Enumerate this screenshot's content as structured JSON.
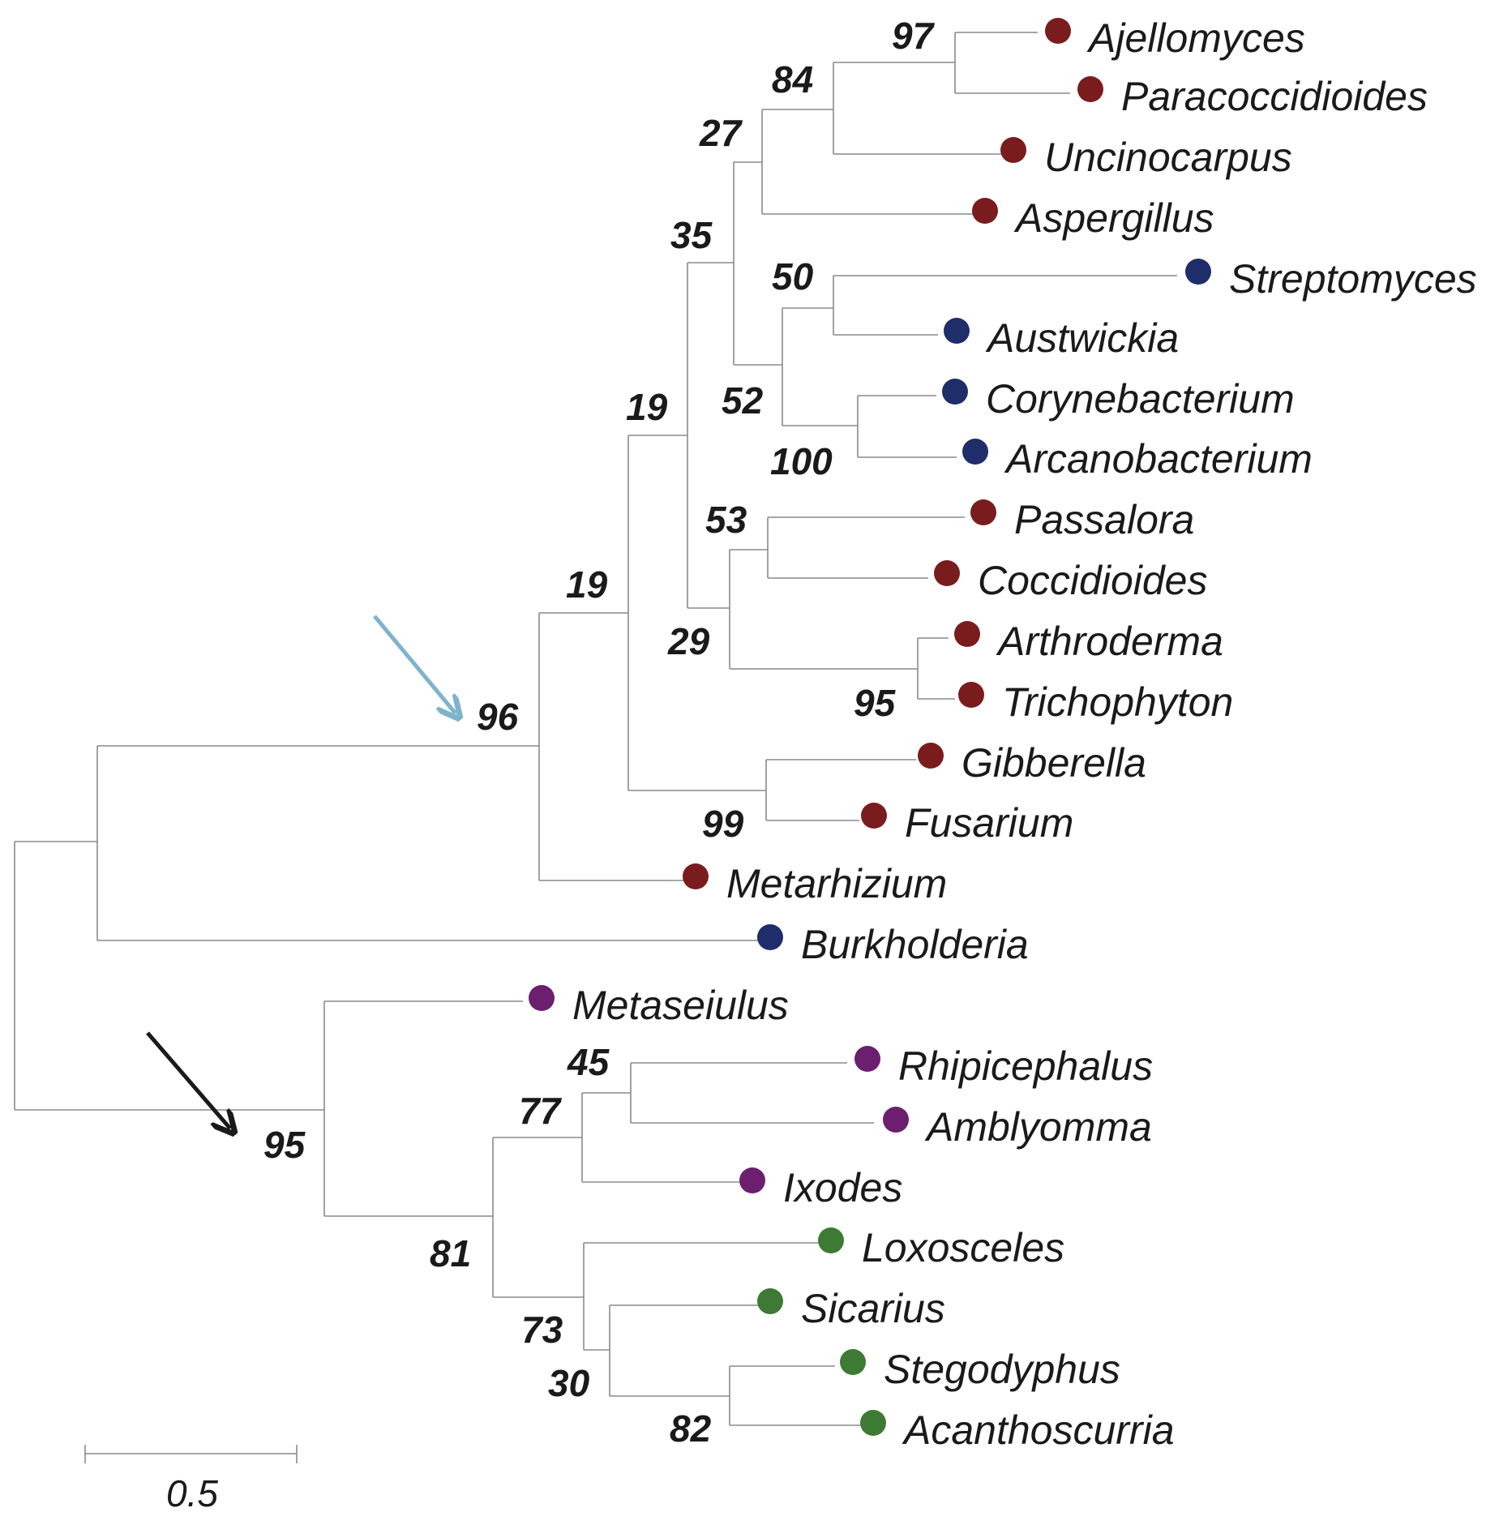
{
  "colors": {
    "fungi": "#7a1c1e",
    "bacteria": "#1f2d6b",
    "acari": "#6b1f6e",
    "araneae": "#3d7a34",
    "arrow_blue": "#7fb3cc",
    "arrow_black": "#1a1a1a"
  },
  "taxa": [
    {
      "name": "Ajellomyces",
      "group": "fungi"
    },
    {
      "name": "Paracoccidioides",
      "group": "fungi"
    },
    {
      "name": "Uncinocarpus",
      "group": "fungi"
    },
    {
      "name": "Aspergillus",
      "group": "fungi"
    },
    {
      "name": "Streptomyces",
      "group": "bacteria"
    },
    {
      "name": "Austwickia",
      "group": "bacteria"
    },
    {
      "name": "Corynebacterium",
      "group": "bacteria"
    },
    {
      "name": "Arcanobacterium",
      "group": "bacteria"
    },
    {
      "name": "Passalora",
      "group": "fungi"
    },
    {
      "name": "Coccidioides",
      "group": "fungi"
    },
    {
      "name": "Arthroderma",
      "group": "fungi"
    },
    {
      "name": "Trichophyton",
      "group": "fungi"
    },
    {
      "name": "Gibberella",
      "group": "fungi"
    },
    {
      "name": "Fusarium",
      "group": "fungi"
    },
    {
      "name": "Metarhizium",
      "group": "fungi"
    },
    {
      "name": "Burkholderia",
      "group": "bacteria"
    },
    {
      "name": "Metaseiulus",
      "group": "acari"
    },
    {
      "name": "Rhipicephalus",
      "group": "acari"
    },
    {
      "name": "Amblyomma",
      "group": "acari"
    },
    {
      "name": "Ixodes",
      "group": "acari"
    },
    {
      "name": "Loxosceles",
      "group": "araneae"
    },
    {
      "name": "Sicarius",
      "group": "araneae"
    },
    {
      "name": "Stegodyphus",
      "group": "araneae"
    },
    {
      "name": "Acanthoscurria",
      "group": "araneae"
    }
  ],
  "bootstrap": [
    "97",
    "84",
    "27",
    "35",
    "50",
    "52",
    "100",
    "19",
    "53",
    "29",
    "95",
    "19",
    "99",
    "96",
    "45",
    "77",
    "81",
    "73",
    "30",
    "82",
    "95"
  ],
  "scale_bar": {
    "label": "0.5"
  },
  "arrows": [
    {
      "name": "blue-arrow",
      "color_key": "arrow_blue"
    },
    {
      "name": "black-arrow",
      "color_key": "arrow_black"
    }
  ]
}
